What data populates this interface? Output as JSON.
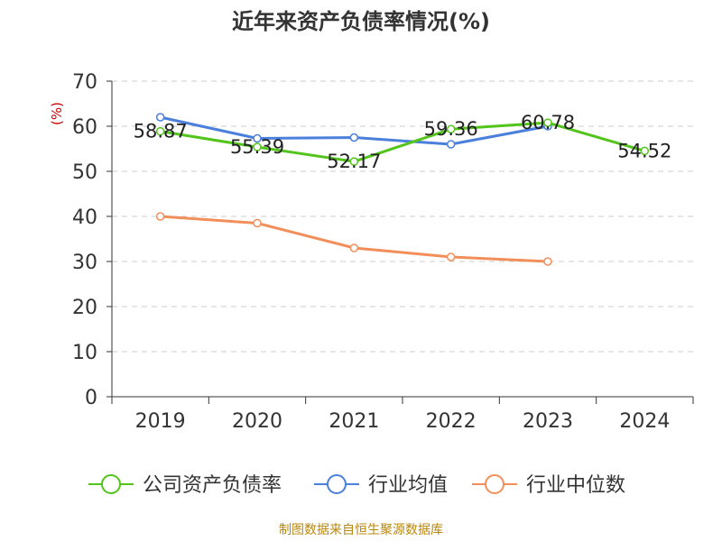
{
  "chart_data": {
    "type": "line",
    "title": "近年来资产负债率情况(%)",
    "ylabel": "(%)",
    "xlabel": "",
    "categories": [
      "2019",
      "2020",
      "2021",
      "2022",
      "2023",
      "2024"
    ],
    "ylim": [
      0,
      70
    ],
    "yticks": [
      0,
      10,
      20,
      30,
      40,
      50,
      60,
      70
    ],
    "grid": true,
    "legend_position": "bottom",
    "series": [
      {
        "name": "公司资产负债率",
        "color": "#52c41a",
        "values": [
          58.87,
          55.39,
          52.17,
          59.36,
          60.78,
          54.52
        ],
        "labels": [
          "58.87",
          "55.39",
          "52.17",
          "59.36",
          "60.78",
          "54.52"
        ]
      },
      {
        "name": "行业均值",
        "color": "#4a7fdc",
        "values": [
          62.0,
          57.3,
          57.5,
          56.0,
          60.0,
          null
        ],
        "labels": []
      },
      {
        "name": "行业中位数",
        "color": "#f28e5a",
        "values": [
          40.0,
          38.5,
          33.0,
          31.0,
          30.0,
          null
        ],
        "labels": []
      }
    ]
  },
  "footer": {
    "source": "制图数据来自恒生聚源数据库"
  }
}
